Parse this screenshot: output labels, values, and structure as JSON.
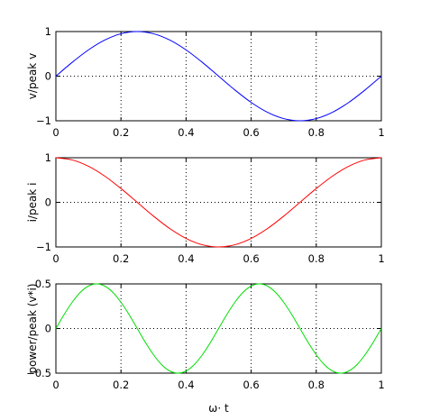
{
  "chart_data": [
    {
      "type": "line",
      "title": "",
      "xlabel": "",
      "ylabel": "v/peak v",
      "xlim": [
        0,
        1
      ],
      "ylim": [
        -1,
        1
      ],
      "xticks": [
        0,
        0.2,
        0.4,
        0.6,
        0.8,
        1
      ],
      "yticks": [
        -1,
        0,
        1
      ],
      "grid": true,
      "series": [
        {
          "color": "#0000ff",
          "x": [
            0,
            0.05,
            0.1,
            0.15,
            0.2,
            0.25,
            0.3,
            0.35,
            0.4,
            0.45,
            0.5,
            0.55,
            0.6,
            0.65,
            0.7,
            0.75,
            0.8,
            0.85,
            0.9,
            0.95,
            1
          ],
          "y": [
            0,
            0.309,
            0.588,
            0.809,
            0.951,
            1,
            0.951,
            0.809,
            0.588,
            0.309,
            0,
            -0.309,
            -0.588,
            -0.809,
            -0.951,
            -1,
            -0.951,
            -0.809,
            -0.588,
            -0.309,
            0
          ]
        }
      ]
    },
    {
      "type": "line",
      "title": "",
      "xlabel": "",
      "ylabel": "i/peak i",
      "xlim": [
        0,
        1
      ],
      "ylim": [
        -1,
        1
      ],
      "xticks": [
        0,
        0.2,
        0.4,
        0.6,
        0.8,
        1
      ],
      "yticks": [
        -1,
        0,
        1
      ],
      "grid": true,
      "series": [
        {
          "color": "#ff0000",
          "x": [
            0,
            0.05,
            0.1,
            0.15,
            0.2,
            0.25,
            0.3,
            0.35,
            0.4,
            0.45,
            0.5,
            0.55,
            0.6,
            0.65,
            0.7,
            0.75,
            0.8,
            0.85,
            0.9,
            0.95,
            1
          ],
          "y": [
            1,
            0.951,
            0.809,
            0.588,
            0.309,
            0,
            -0.309,
            -0.588,
            -0.809,
            -0.951,
            -1,
            -0.951,
            -0.809,
            -0.588,
            -0.309,
            0,
            0.309,
            0.588,
            0.809,
            0.951,
            1
          ]
        }
      ]
    },
    {
      "type": "line",
      "title": "",
      "xlabel": "ω· t",
      "ylabel": "power/peak (v*i)",
      "xlim": [
        0,
        1
      ],
      "ylim": [
        -0.5,
        0.5
      ],
      "xticks": [
        0,
        0.2,
        0.4,
        0.6,
        0.8,
        1
      ],
      "yticks": [
        -0.5,
        0,
        0.5
      ],
      "grid": true,
      "series": [
        {
          "color": "#00dd00",
          "x": [
            0,
            0.025,
            0.05,
            0.075,
            0.1,
            0.125,
            0.15,
            0.175,
            0.2,
            0.225,
            0.25,
            0.275,
            0.3,
            0.325,
            0.35,
            0.375,
            0.4,
            0.425,
            0.45,
            0.475,
            0.5,
            0.525,
            0.55,
            0.575,
            0.6,
            0.625,
            0.65,
            0.675,
            0.7,
            0.725,
            0.75,
            0.775,
            0.8,
            0.825,
            0.85,
            0.875,
            0.9,
            0.925,
            0.95,
            0.975,
            1
          ],
          "y": [
            0,
            0.155,
            0.294,
            0.405,
            0.476,
            0.5,
            0.476,
            0.405,
            0.294,
            0.155,
            0,
            -0.155,
            -0.294,
            -0.405,
            -0.476,
            -0.5,
            -0.476,
            -0.405,
            -0.294,
            -0.155,
            0,
            0.155,
            0.294,
            0.405,
            0.476,
            0.5,
            0.476,
            0.405,
            0.294,
            0.155,
            0,
            -0.155,
            -0.294,
            -0.405,
            -0.476,
            -0.5,
            -0.476,
            -0.405,
            -0.294,
            -0.155,
            0
          ]
        }
      ]
    }
  ]
}
